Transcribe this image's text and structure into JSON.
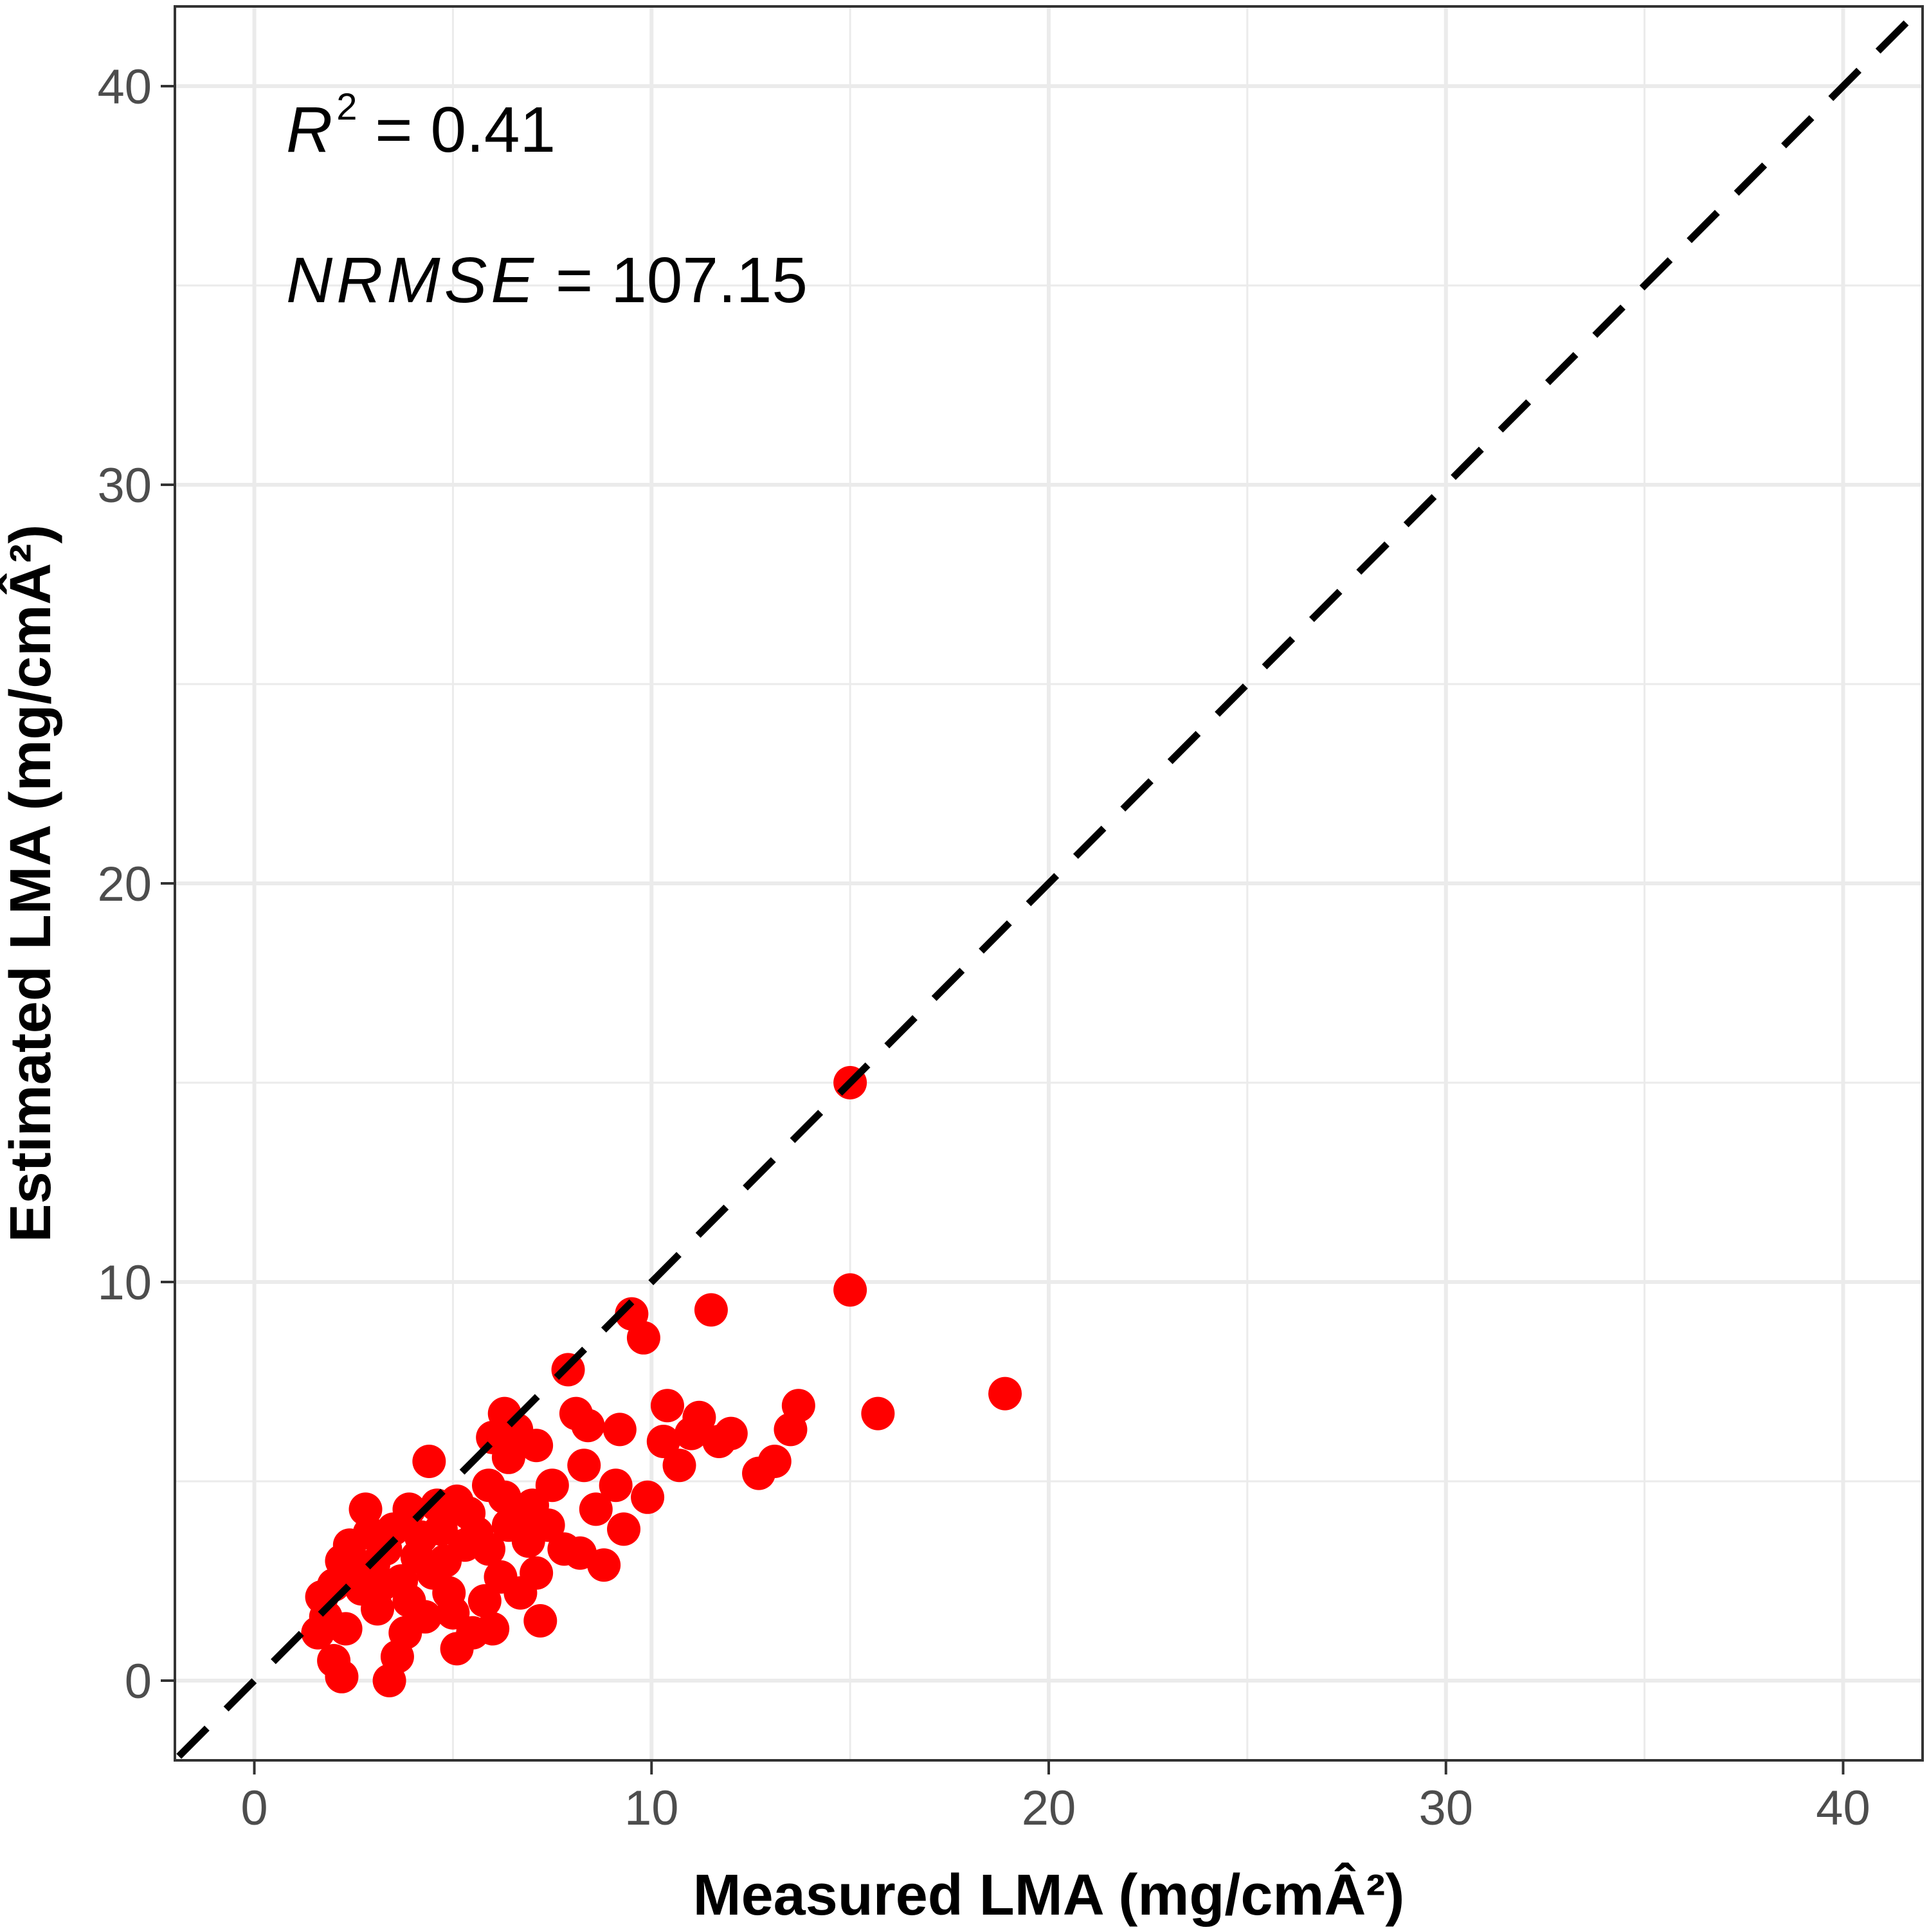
{
  "chart_data": {
    "type": "scatter",
    "xlabel": "Measured LMA (mg/cmÂ²)",
    "ylabel": "Estimated LMA (mg/cmÂ²)",
    "xlim": [
      -2,
      42
    ],
    "ylim": [
      -2,
      42
    ],
    "x_ticks": [
      0,
      10,
      20,
      30,
      40
    ],
    "y_ticks": [
      0,
      10,
      20,
      30,
      40
    ],
    "x_tick_labels": [
      "0",
      "10",
      "20",
      "30",
      "40"
    ],
    "y_tick_labels": [
      "0",
      "10",
      "20",
      "30",
      "40"
    ],
    "grid": true,
    "point_color": "#ff0000",
    "reference_line": {
      "style": "dashed",
      "color": "#000000",
      "slope": 1,
      "intercept": 0
    },
    "annotations": {
      "r2_label": "R",
      "r2_sup": "2",
      "r2_value": " = 0.41",
      "nrmse_label": "NRMSE",
      "nrmse_value": " = 107.15"
    },
    "points": [
      [
        15.0,
        15.0
      ],
      [
        15.0,
        9.8
      ],
      [
        11.5,
        9.3
      ],
      [
        9.5,
        9.2
      ],
      [
        9.8,
        8.6
      ],
      [
        7.9,
        7.8
      ],
      [
        18.9,
        7.2
      ],
      [
        15.7,
        6.7
      ],
      [
        13.7,
        6.9
      ],
      [
        10.4,
        6.9
      ],
      [
        11.2,
        6.6
      ],
      [
        12.0,
        6.2
      ],
      [
        13.5,
        6.3
      ],
      [
        9.2,
        6.3
      ],
      [
        8.1,
        6.7
      ],
      [
        8.4,
        6.4
      ],
      [
        6.3,
        6.7
      ],
      [
        6.6,
        6.3
      ],
      [
        6.0,
        6.1
      ],
      [
        7.1,
        5.9
      ],
      [
        6.4,
        5.6
      ],
      [
        4.4,
        5.5
      ],
      [
        8.3,
        5.4
      ],
      [
        10.7,
        5.4
      ],
      [
        13.1,
        5.5
      ],
      [
        12.7,
        5.2
      ],
      [
        11.7,
        6.0
      ],
      [
        10.3,
        6.0
      ],
      [
        11.0,
        6.2
      ],
      [
        9.1,
        4.9
      ],
      [
        9.9,
        4.6
      ],
      [
        8.6,
        4.3
      ],
      [
        9.3,
        3.8
      ],
      [
        8.2,
        3.2
      ],
      [
        8.8,
        2.9
      ],
      [
        7.5,
        4.9
      ],
      [
        7.0,
        4.4
      ],
      [
        6.3,
        4.6
      ],
      [
        5.9,
        4.9
      ],
      [
        5.4,
        4.2
      ],
      [
        5.1,
        4.5
      ],
      [
        4.6,
        4.4
      ],
      [
        3.9,
        4.3
      ],
      [
        4.2,
        3.6
      ],
      [
        3.5,
        3.8
      ],
      [
        2.9,
        3.7
      ],
      [
        2.4,
        3.4
      ],
      [
        2.8,
        4.3
      ],
      [
        2.2,
        3.0
      ],
      [
        2.0,
        2.4
      ],
      [
        1.7,
        2.1
      ],
      [
        1.8,
        1.6
      ],
      [
        1.6,
        1.2
      ],
      [
        2.3,
        1.3
      ],
      [
        2.0,
        0.5
      ],
      [
        2.2,
        0.1
      ],
      [
        3.4,
        0.0
      ],
      [
        3.6,
        0.6
      ],
      [
        5.1,
        0.8
      ],
      [
        5.5,
        1.2
      ],
      [
        7.2,
        1.5
      ],
      [
        6.7,
        2.2
      ],
      [
        7.1,
        2.7
      ],
      [
        6.2,
        2.6
      ],
      [
        5.8,
        2.0
      ],
      [
        4.9,
        2.2
      ],
      [
        4.3,
        1.6
      ],
      [
        3.8,
        1.2
      ],
      [
        3.1,
        1.8
      ],
      [
        2.7,
        2.3
      ],
      [
        3.0,
        2.9
      ],
      [
        3.7,
        2.5
      ],
      [
        4.1,
        3.1
      ],
      [
        4.8,
        3.0
      ],
      [
        5.3,
        3.4
      ],
      [
        5.9,
        3.3
      ],
      [
        6.4,
        3.9
      ],
      [
        6.9,
        3.5
      ],
      [
        7.4,
        3.9
      ],
      [
        7.8,
        3.3
      ],
      [
        4.5,
        2.7
      ],
      [
        3.3,
        3.3
      ],
      [
        2.6,
        2.6
      ],
      [
        3.9,
        2.0
      ],
      [
        5.0,
        1.7
      ],
      [
        6.0,
        1.3
      ],
      [
        4.7,
        3.8
      ],
      [
        5.6,
        3.7
      ],
      [
        6.7,
        4.1
      ],
      [
        3.2,
        2.4
      ]
    ]
  }
}
